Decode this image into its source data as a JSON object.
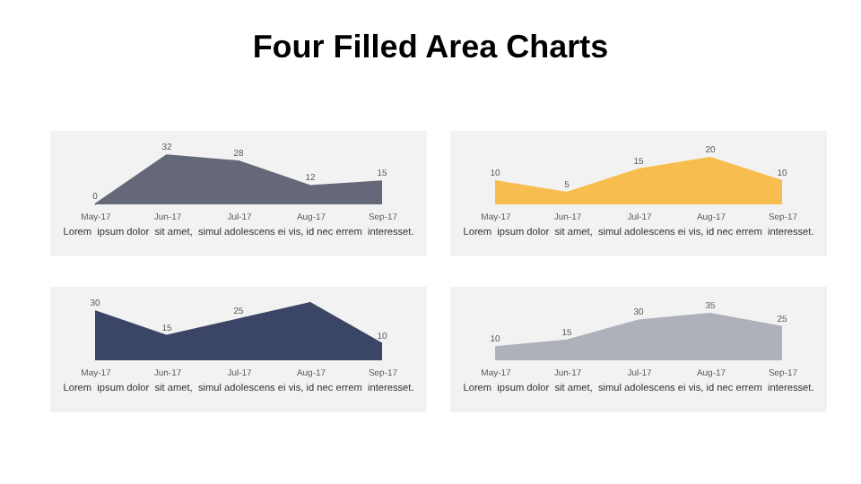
{
  "chart_data": [
    {
      "type": "area",
      "title": "Four Filled Area Charts",
      "categories": [
        "May-17",
        "Jun-17",
        "Jul-17",
        "Aug-17",
        "Sep-17"
      ],
      "values": [
        0,
        32,
        28,
        12,
        15
      ],
      "color": "#646878",
      "data_labels": true,
      "annotations": [
        "Lorem  ipsum dolor  sit amet,  simul adolescens ei vis, id nec errem  interesset."
      ]
    },
    {
      "type": "area",
      "categories": [
        "May-17",
        "Jun-17",
        "Jul-17",
        "Aug-17",
        "Sep-17"
      ],
      "values": [
        10,
        5,
        15,
        20,
        10
      ],
      "color": "#f7be4f",
      "data_labels": true,
      "annotations": [
        "Lorem  ipsum dolor  sit amet,  simul adolescens ei vis, id nec errem  interesset."
      ]
    },
    {
      "type": "area",
      "categories": [
        "May-17",
        "Jun-17",
        "Jul-17",
        "Aug-17",
        "Sep-17"
      ],
      "values": [
        30,
        15,
        25,
        35,
        10
      ],
      "value_labels": [
        "30",
        "15",
        "25",
        null,
        "10"
      ],
      "color": "#3b4566",
      "annotations": [
        "Lorem  ipsum dolor  sit amet,  simul adolescens ei vis, id nec errem  interesset."
      ]
    },
    {
      "type": "area",
      "categories": [
        "May-17",
        "Jun-17",
        "Jul-17",
        "Aug-17",
        "Sep-17"
      ],
      "values": [
        10,
        15,
        30,
        35,
        25
      ],
      "color": "#aeb1ba",
      "data_labels": true,
      "annotations": [
        "Lorem  ipsum dolor  sit amet,  simul adolescens ei vis, id nec errem  interesset."
      ]
    }
  ]
}
